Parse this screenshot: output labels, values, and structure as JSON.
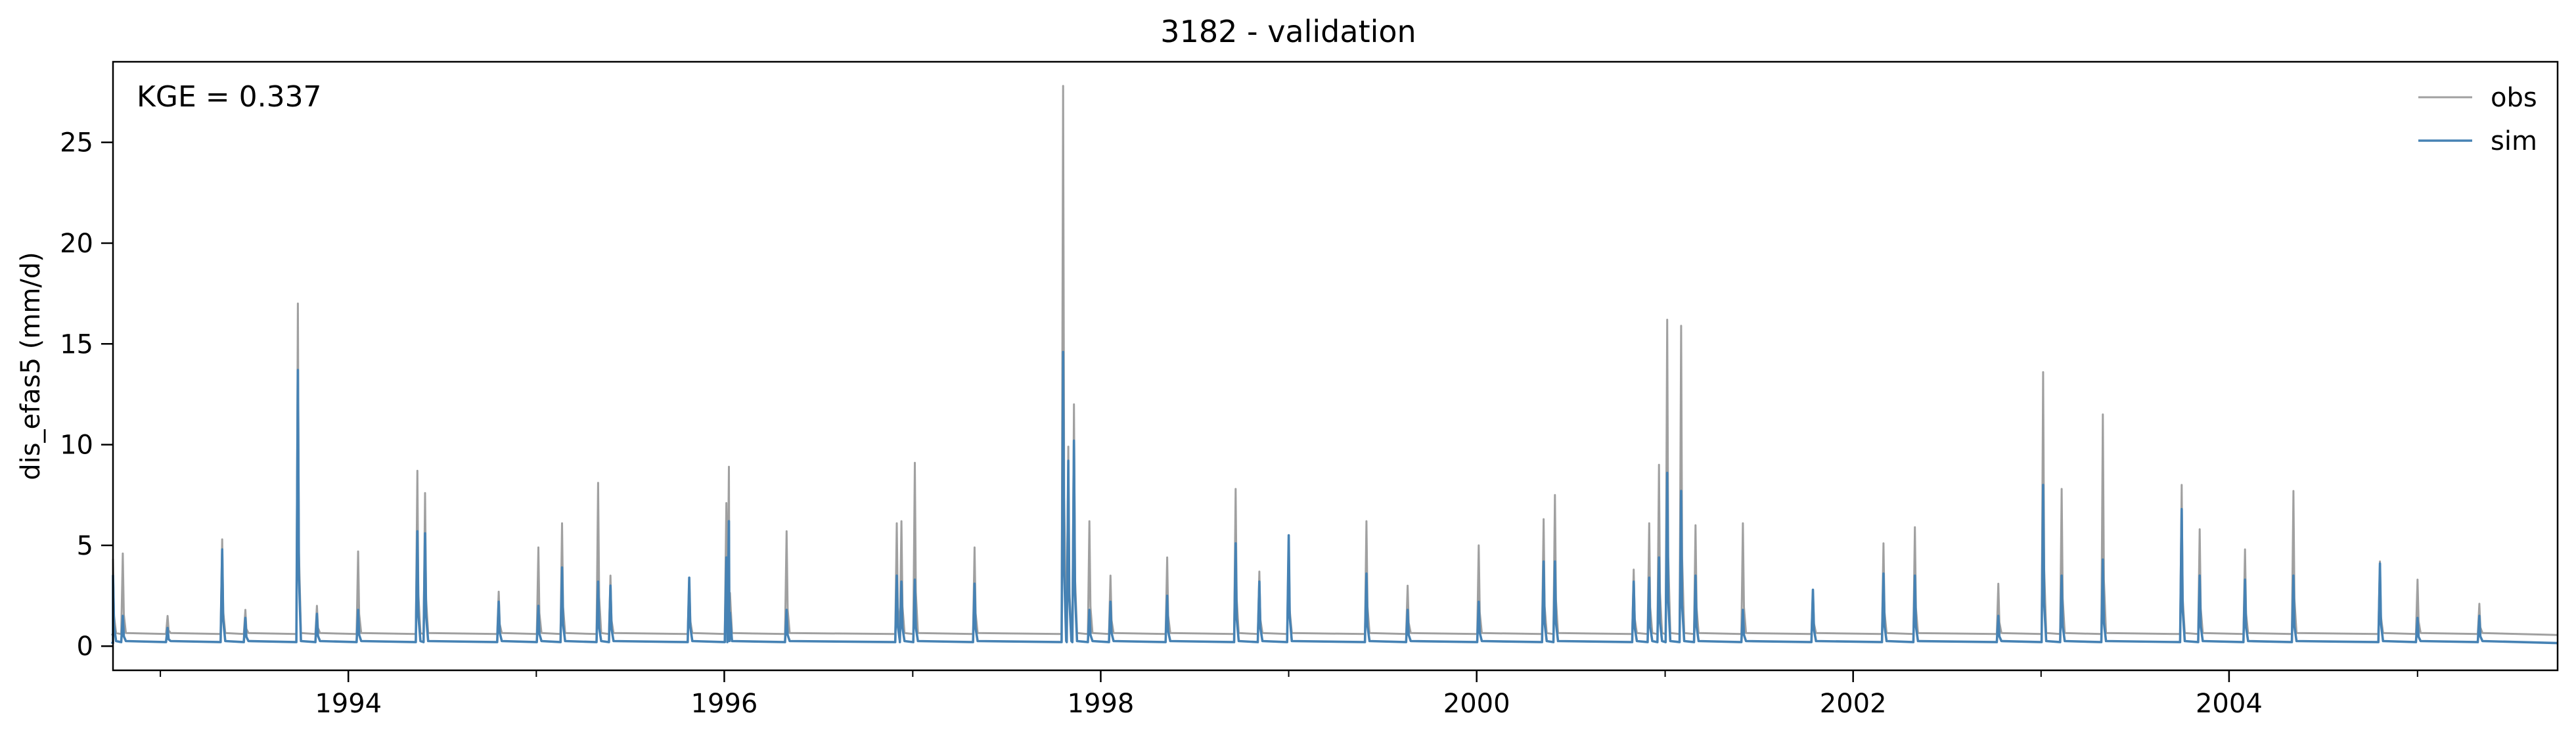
{
  "chart_data": {
    "type": "line",
    "title": "3182 - validation",
    "xlabel": "",
    "ylabel": "dis_efas5 (mm/d)",
    "x_range": [
      "1992-10-01",
      "2005-09-30"
    ],
    "ylim": [
      -1.2,
      29
    ],
    "x_ticks": [
      "1994",
      "1996",
      "1998",
      "2000",
      "2002",
      "2004"
    ],
    "y_ticks": [
      "0",
      "5",
      "10",
      "15",
      "20",
      "25"
    ],
    "grid": false,
    "legend": {
      "placement": "top-right",
      "entries": [
        "obs",
        "sim"
      ]
    },
    "annotation": "KGE = 0.337",
    "colors": {
      "obs": "#a0a0a0",
      "sim": "#4682b4"
    },
    "series": [
      {
        "name": "obs",
        "baseline": 0.55,
        "x": [
          "1992-10-01",
          "1992-10-20",
          "1993-01-15",
          "1993-05-01",
          "1993-06-15",
          "1993-09-25",
          "1993-11-01",
          "1994-01-20",
          "1994-05-15",
          "1994-05-30",
          "1994-10-20",
          "1995-01-05",
          "1995-02-20",
          "1995-05-01",
          "1995-05-25",
          "1995-10-25",
          "1996-01-05",
          "1996-01-10",
          "1996-05-01",
          "1996-12-01",
          "1996-12-10",
          "1997-01-05",
          "1997-05-01",
          "1997-10-20",
          "1997-10-30",
          "1997-11-10",
          "1997-12-10",
          "1998-01-20",
          "1998-05-10",
          "1998-09-20",
          "1998-11-05",
          "1999-01-01",
          "1999-06-01",
          "1999-08-20",
          "2000-01-05",
          "2000-05-10",
          "2000-06-01",
          "2000-11-01",
          "2000-12-01",
          "2000-12-20",
          "2001-01-05",
          "2001-02-01",
          "2001-03-01",
          "2001-06-01",
          "2001-10-15",
          "2002-03-01",
          "2002-05-01",
          "2002-10-10",
          "2003-01-05",
          "2003-02-10",
          "2003-05-01",
          "2003-10-01",
          "2003-11-05",
          "2004-02-01",
          "2004-05-05",
          "2004-10-20",
          "2005-01-01",
          "2005-05-01"
        ],
        "y": [
          4.3,
          4.6,
          1.5,
          5.3,
          1.8,
          17.0,
          2.0,
          4.7,
          8.7,
          7.6,
          2.7,
          4.9,
          6.1,
          8.1,
          3.5,
          3.4,
          7.1,
          8.9,
          5.7,
          6.1,
          6.2,
          9.1,
          4.9,
          27.8,
          9.9,
          12.0,
          6.2,
          3.5,
          4.4,
          7.8,
          3.7,
          5.5,
          6.2,
          3.0,
          5.0,
          6.3,
          7.5,
          3.8,
          6.1,
          9.0,
          16.2,
          15.9,
          6.0,
          6.1,
          2.8,
          5.1,
          5.9,
          3.1,
          13.6,
          7.8,
          11.5,
          8.0,
          5.8,
          4.8,
          7.7,
          4.2,
          3.3,
          2.1
        ]
      },
      {
        "name": "sim",
        "baseline": 0.15,
        "x": [
          "1992-10-01",
          "1992-10-20",
          "1993-01-15",
          "1993-05-01",
          "1993-06-15",
          "1993-09-25",
          "1993-11-01",
          "1994-01-20",
          "1994-05-15",
          "1994-05-30",
          "1994-10-20",
          "1995-01-05",
          "1995-02-20",
          "1995-05-01",
          "1995-05-25",
          "1995-10-25",
          "1996-01-05",
          "1996-01-10",
          "1996-05-01",
          "1996-12-01",
          "1996-12-10",
          "1997-01-05",
          "1997-05-01",
          "1997-10-20",
          "1997-10-30",
          "1997-11-10",
          "1997-12-10",
          "1998-01-20",
          "1998-05-10",
          "1998-09-20",
          "1998-11-05",
          "1999-01-01",
          "1999-06-01",
          "1999-08-20",
          "2000-01-05",
          "2000-05-10",
          "2000-06-01",
          "2000-11-01",
          "2000-12-01",
          "2000-12-20",
          "2001-01-05",
          "2001-02-01",
          "2001-03-01",
          "2001-06-01",
          "2001-10-15",
          "2002-03-01",
          "2002-05-01",
          "2002-10-10",
          "2003-01-05",
          "2003-02-10",
          "2003-05-01",
          "2003-10-01",
          "2003-11-05",
          "2004-02-01",
          "2004-05-05",
          "2004-10-20",
          "2005-01-01",
          "2005-05-01"
        ],
        "y": [
          3.5,
          1.5,
          0.9,
          4.8,
          1.4,
          13.7,
          1.6,
          1.8,
          5.7,
          5.6,
          2.2,
          2.0,
          3.9,
          3.2,
          3.0,
          3.4,
          4.4,
          6.2,
          1.8,
          3.5,
          3.2,
          3.3,
          3.1,
          14.6,
          9.2,
          10.2,
          1.8,
          2.2,
          2.5,
          5.1,
          3.2,
          5.5,
          3.6,
          1.8,
          2.2,
          4.2,
          4.2,
          3.2,
          3.4,
          4.4,
          8.6,
          7.7,
          3.5,
          1.8,
          2.8,
          3.6,
          3.5,
          1.5,
          8.0,
          3.5,
          4.3,
          6.8,
          3.5,
          3.3,
          3.5,
          4.1,
          1.4,
          1.5
        ]
      }
    ]
  }
}
